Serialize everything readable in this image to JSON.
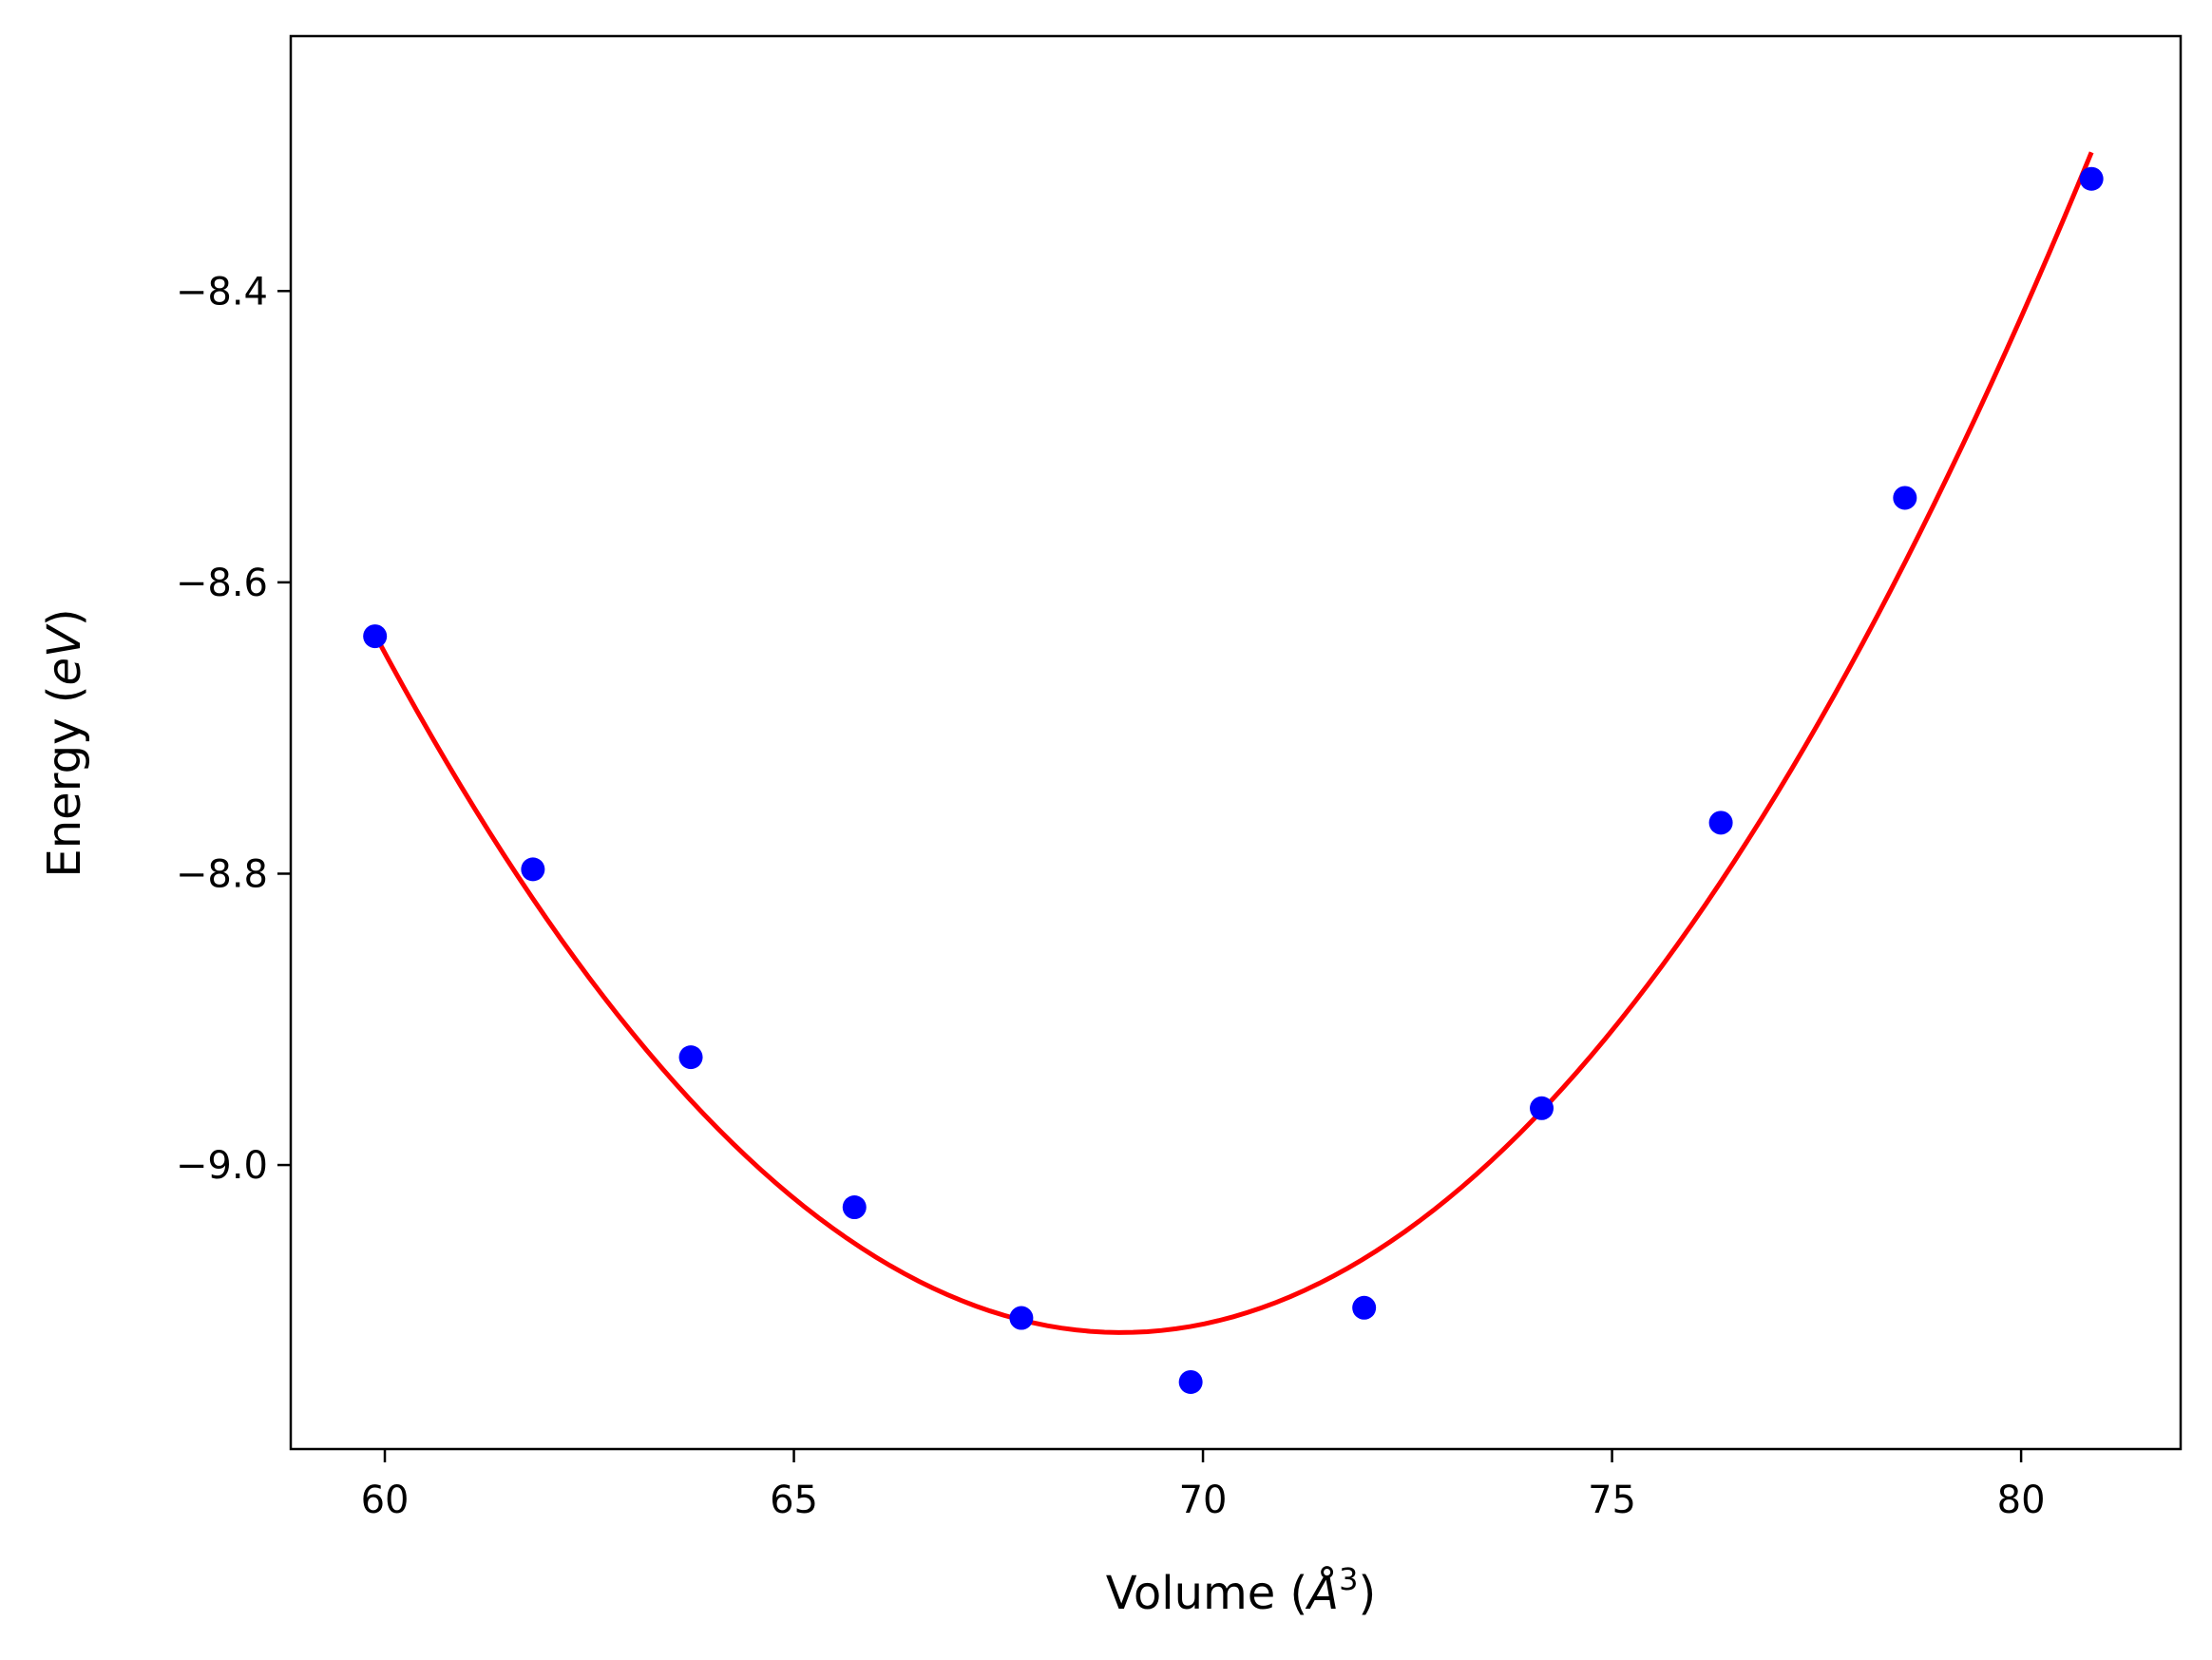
{
  "chart_data": {
    "type": "scatter",
    "title": "",
    "xlabel": {
      "text": "Volume (",
      "symbol": "Å",
      "sup": "3",
      "close": ")"
    },
    "ylabel": {
      "text": "Energy (",
      "italic": "eV",
      "close": ")"
    },
    "xlim": [
      58.85,
      81.95
    ],
    "ylim": [
      -9.195,
      -8.225
    ],
    "x_ticks": [
      {
        "value": 60,
        "label": "60"
      },
      {
        "value": 65,
        "label": "65"
      },
      {
        "value": 70,
        "label": "70"
      },
      {
        "value": 75,
        "label": "75"
      },
      {
        "value": 80,
        "label": "80"
      }
    ],
    "y_ticks": [
      {
        "value": -8.4,
        "label": "−8.4"
      },
      {
        "value": -8.6,
        "label": "−8.6"
      },
      {
        "value": -8.8,
        "label": "−8.8"
      },
      {
        "value": -9.0,
        "label": "−9.0"
      }
    ],
    "grid": false,
    "series": [
      {
        "kind": "scatter",
        "color": "#0000ff",
        "points": [
          {
            "x": 59.88,
            "y": -8.637
          },
          {
            "x": 61.81,
            "y": -8.797
          },
          {
            "x": 63.74,
            "y": -8.926
          },
          {
            "x": 65.74,
            "y": -9.029
          },
          {
            "x": 67.78,
            "y": -9.105
          },
          {
            "x": 69.85,
            "y": -9.149
          },
          {
            "x": 71.97,
            "y": -9.098
          },
          {
            "x": 74.14,
            "y": -8.961
          },
          {
            "x": 76.33,
            "y": -8.765
          },
          {
            "x": 78.58,
            "y": -8.542
          },
          {
            "x": 80.86,
            "y": -8.323
          }
        ]
      },
      {
        "kind": "line",
        "color": "#ff0000",
        "fit": {
          "type": "quadratic",
          "x_min": 59.88,
          "x_max": 80.86,
          "vertex_x": 69.0,
          "vertex_y": -9.115,
          "curvature": 0.00576,
          "samples": 120
        }
      }
    ]
  }
}
